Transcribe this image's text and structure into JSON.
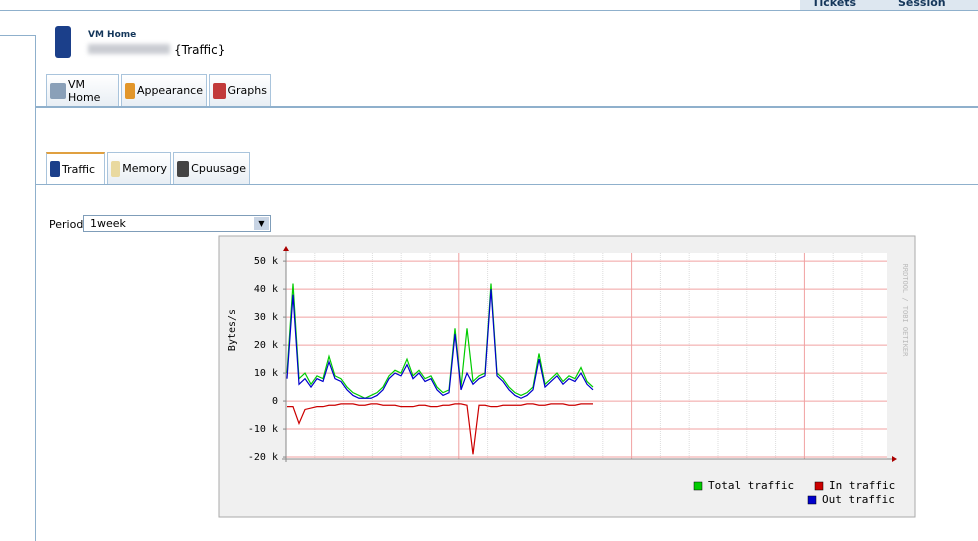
{
  "top_tabs": [
    "Tickets",
    "Session"
  ],
  "header": {
    "title": "VM Home",
    "subtitle": "{Traffic}"
  },
  "tabs": [
    "VM Home",
    "Appearance",
    "Graphs"
  ],
  "subtabs": [
    "Traffic",
    "Memory",
    "Cpuusage"
  ],
  "period": {
    "label": "Period",
    "value": "1week"
  },
  "chart_data": {
    "type": "line",
    "ylabel": "Bytes/s",
    "watermark": "RRDTOOL / TOBI OETIKER",
    "ylim": [
      -20700,
      52900
    ],
    "yticks": [
      {
        "value": 50000,
        "label": "50 k"
      },
      {
        "value": 40000,
        "label": "40 k"
      },
      {
        "value": 30000,
        "label": "30 k"
      },
      {
        "value": 20000,
        "label": "20 k"
      },
      {
        "value": 10000,
        "label": "10 k"
      },
      0,
      {
        "value": -10000,
        "label": "-10 k"
      },
      {
        "value": -20000,
        "label": "-20 k"
      }
    ],
    "grid": true,
    "series": [
      {
        "name": "Total traffic",
        "color": "#00cc00",
        "values": [
          10000,
          42000,
          8000,
          10000,
          6000,
          9000,
          8000,
          16000,
          9000,
          8000,
          5000,
          3000,
          2000,
          1000,
          2000,
          3000,
          5000,
          9000,
          11000,
          10000,
          15000,
          9000,
          11000,
          8000,
          9000,
          5000,
          3000,
          4000,
          26000,
          5000,
          26000,
          7000,
          9000,
          10000,
          42000,
          10000,
          8000,
          5000,
          3000,
          2000,
          3000,
          5000,
          17000,
          6000,
          8000,
          10000,
          7000,
          9000,
          8000,
          12000,
          7000,
          5000
        ]
      },
      {
        "name": "In traffic",
        "color": "#cc0000",
        "values": [
          -2000,
          -2000,
          -8000,
          -3000,
          -2500,
          -2000,
          -2000,
          -1500,
          -1500,
          -1000,
          -1000,
          -1000,
          -1500,
          -1500,
          -1000,
          -1000,
          -1500,
          -1500,
          -1500,
          -2000,
          -2000,
          -2000,
          -1500,
          -1500,
          -2000,
          -2000,
          -1500,
          -1500,
          -1000,
          -1000,
          -1500,
          -19000,
          -1500,
          -1500,
          -2000,
          -2000,
          -1500,
          -1500,
          -1500,
          -1500,
          -1000,
          -1000,
          -1500,
          -1500,
          -1000,
          -1000,
          -1000,
          -1500,
          -1500,
          -1000,
          -1000,
          -1000
        ]
      },
      {
        "name": "Out traffic",
        "color": "#0000cc",
        "values": [
          8000,
          38000,
          6000,
          8000,
          5000,
          8000,
          7000,
          14000,
          8000,
          7000,
          4000,
          2000,
          1000,
          1000,
          1000,
          2000,
          4000,
          8000,
          10000,
          9000,
          13000,
          8000,
          10000,
          7000,
          8000,
          4000,
          2000,
          3000,
          24000,
          4000,
          10000,
          6000,
          8000,
          9000,
          40000,
          9000,
          7000,
          4000,
          2000,
          1000,
          2000,
          4000,
          15000,
          5000,
          7000,
          9000,
          6000,
          8000,
          7000,
          10000,
          6000,
          4000
        ]
      }
    ]
  }
}
